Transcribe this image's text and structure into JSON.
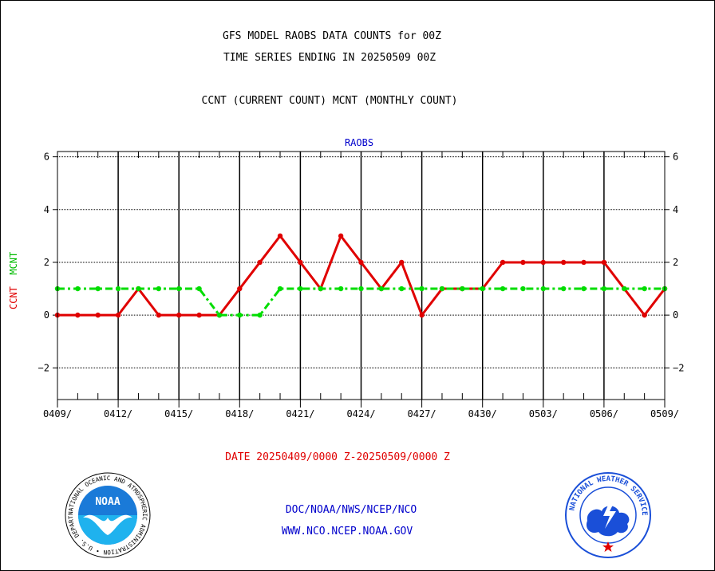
{
  "title_line1": "GFS MODEL RAOBS DATA COUNTS for 00Z",
  "title_line2": "TIME SERIES ENDING IN 20250509 00Z",
  "subtitle": "CCNT (CURRENT COUNT) MCNT (MONTHLY COUNT)",
  "panel_label": "RAOBS",
  "ylabel_ccnt": "CCNT",
  "ylabel_mcnt": "MCNT",
  "date_range": "DATE 20250409/0000 Z-20250509/0000 Z",
  "credit_line1": "DOC/NOAA/NWS/NCEP/NCO",
  "credit_line2": "WWW.NCO.NCEP.NOAA.GOV",
  "logos": {
    "noaa_text": "NOAA",
    "noaa_ring": "NATIONAL OCEANIC AND ATMOSPHERIC ADMINISTRATION • U.S. DEPARTMENT OF COMMERCE •",
    "nws_ring": "NATIONAL WEATHER SERVICE"
  },
  "colors": {
    "ccnt": "#e00000",
    "mcnt": "#00dd00",
    "text_blue": "#0000cc"
  },
  "chart_data": {
    "type": "line",
    "ylim": [
      -3.2,
      6.2
    ],
    "yticks": [
      -2,
      0,
      2,
      4,
      6
    ],
    "x_tick_labels": [
      "0409/",
      "0412/",
      "0415/",
      "0418/",
      "0421/",
      "0424/",
      "0427/",
      "0430/",
      "0503/",
      "0506/",
      "0509/"
    ],
    "grid": true,
    "series": [
      {
        "name": "CCNT",
        "style": "solid",
        "values": [
          0,
          0,
          0,
          0,
          1,
          0,
          0,
          0,
          0,
          1,
          2,
          3,
          2,
          1,
          3,
          2,
          1,
          2,
          0,
          1,
          1,
          1,
          2,
          2,
          2,
          2,
          2,
          2,
          1,
          0,
          1
        ]
      },
      {
        "name": "MCNT",
        "style": "dashdot",
        "values": [
          1,
          1,
          1,
          1,
          1,
          1,
          1,
          1,
          0,
          0,
          0,
          1,
          1,
          1,
          1,
          1,
          1,
          1,
          1,
          1,
          1,
          1,
          1,
          1,
          1,
          1,
          1,
          1,
          1,
          1,
          1
        ]
      }
    ]
  }
}
